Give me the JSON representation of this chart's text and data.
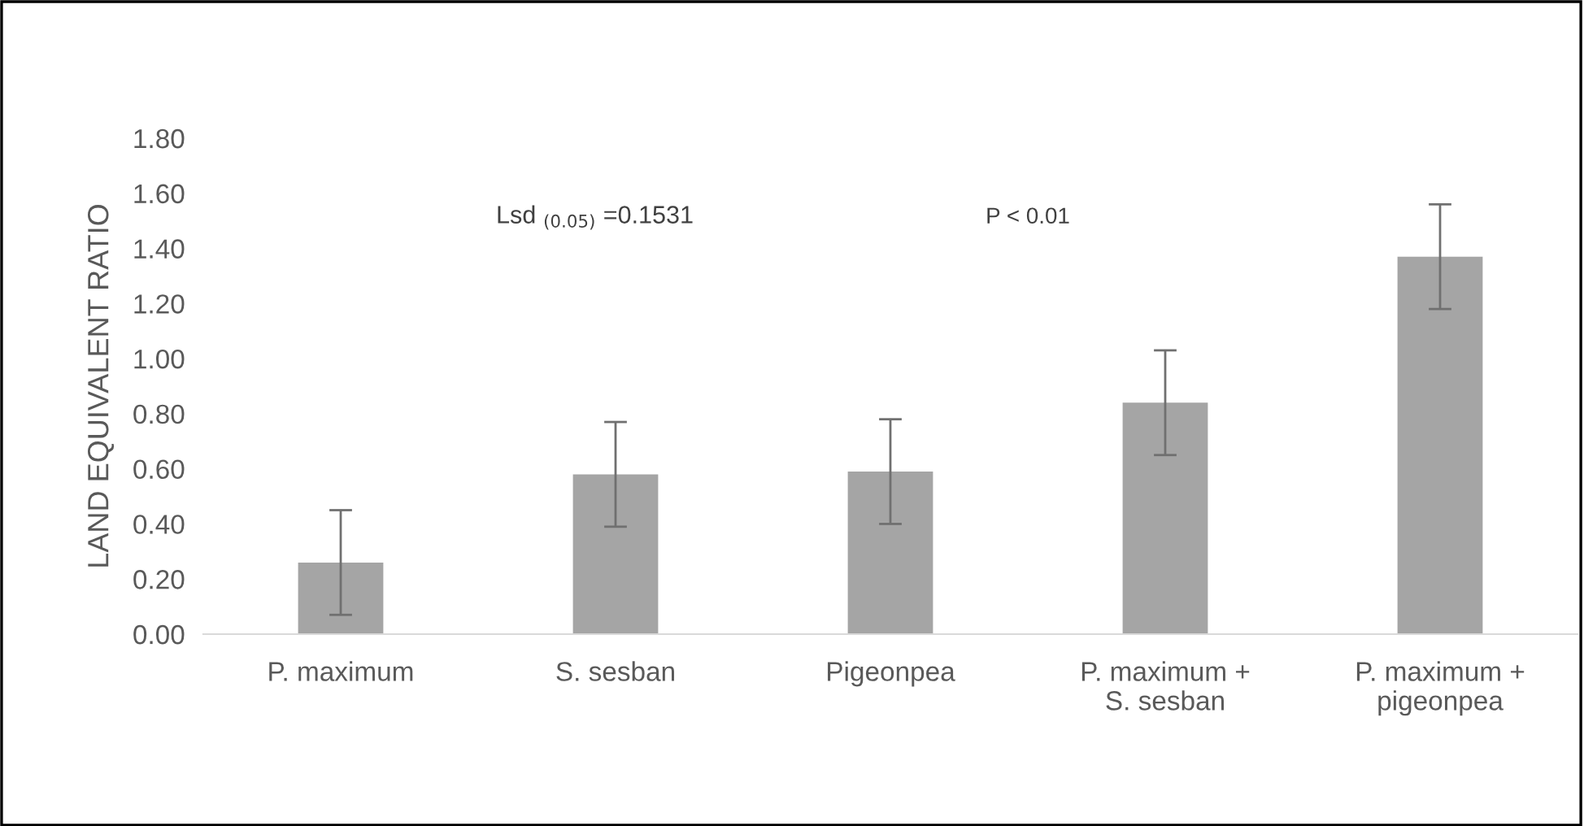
{
  "chart_data": {
    "type": "bar",
    "ylabel": "LAND EQUIVALENT RATIO",
    "categories": [
      "P. maximum",
      "S. sesban",
      "Pigeonpea",
      "P. maximum +\nS. sesban",
      "P. maximum +\npigeonpea"
    ],
    "values": [
      0.26,
      0.58,
      0.59,
      0.84,
      1.37
    ],
    "errors": [
      0.19,
      0.19,
      0.19,
      0.19,
      0.19
    ],
    "color": "#a5a5a5",
    "ylim": [
      0,
      1.8
    ],
    "yticks": [
      {
        "value": 0,
        "label": "0.00"
      },
      {
        "value": 0.2,
        "label": "0.20"
      },
      {
        "value": 0.4,
        "label": "0.40"
      },
      {
        "value": 0.6,
        "label": "0.60"
      },
      {
        "value": 0.8,
        "label": "0.80"
      },
      {
        "value": 1,
        "label": "1.00"
      },
      {
        "value": 1.2,
        "label": "1.20"
      },
      {
        "value": 1.4,
        "label": "1.40"
      },
      {
        "value": 1.6,
        "label": "1.60"
      },
      {
        "value": 1.8,
        "label": "1.80"
      }
    ],
    "annotations": [
      "Lsd $_{(0.05)}$ =0.1531",
      "P < 0.01"
    ],
    "grid": false
  }
}
